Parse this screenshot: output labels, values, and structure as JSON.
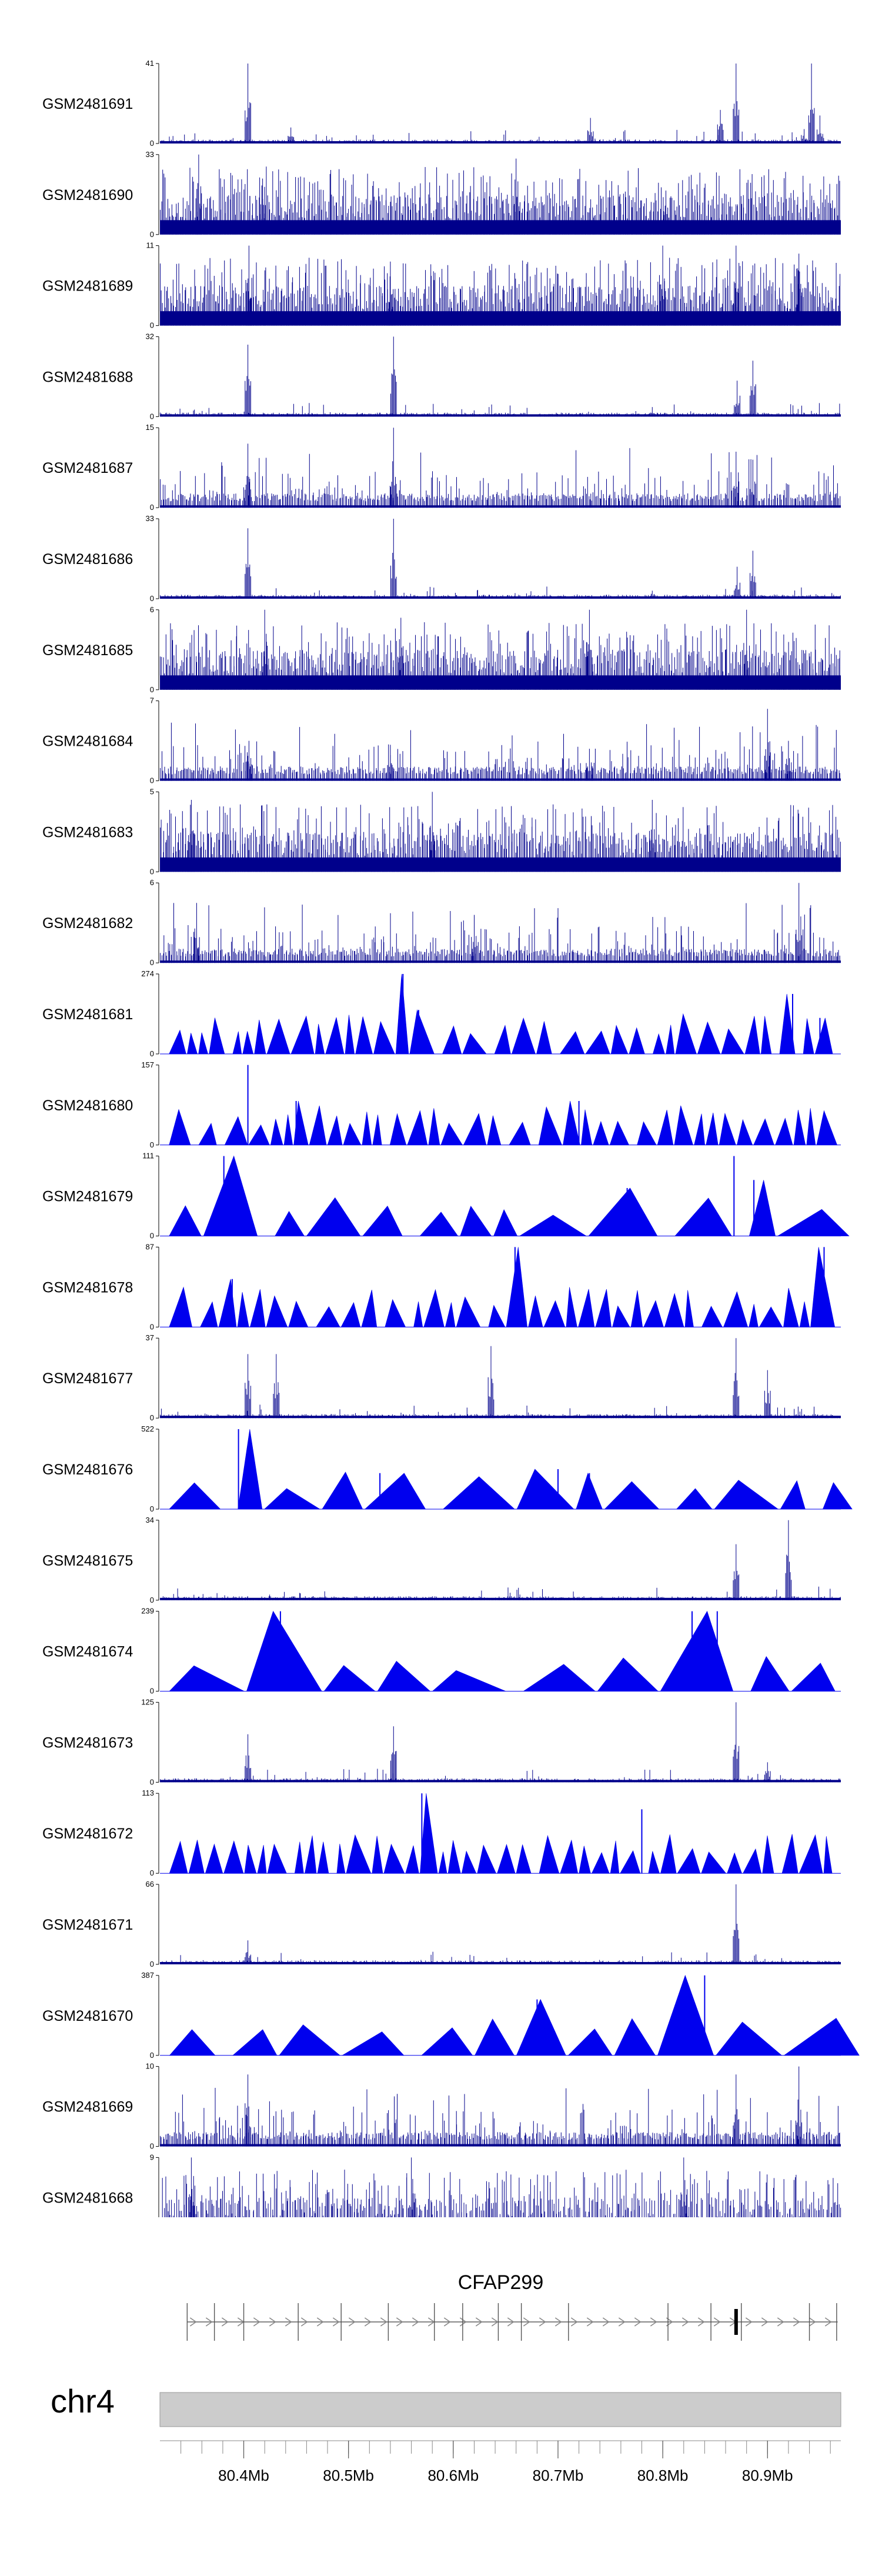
{
  "chart_data": {
    "type": "area",
    "title": "",
    "region": {
      "chromosome": "chr4",
      "start_mb": 80.32,
      "end_mb": 80.97
    },
    "tracks": [
      {
        "name": "GSM2481691",
        "ymax": "41",
        "ymin": "0",
        "style": "spiky",
        "seed": 11,
        "peaks": [
          [
            80.404,
            1.0
          ],
          [
            80.445,
            0.2
          ],
          [
            80.731,
            0.32
          ],
          [
            80.855,
            0.42
          ],
          [
            80.87,
            1.0
          ],
          [
            80.935,
            0.18
          ],
          [
            80.942,
            1.0
          ],
          [
            80.95,
            0.35
          ]
        ]
      },
      {
        "name": "GSM2481690",
        "ymax": "33",
        "ymin": "0",
        "style": "dense",
        "seed": 23,
        "peaks": [
          [
            80.357,
            1.0
          ],
          [
            80.418,
            0.7
          ],
          [
            80.66,
            0.95
          ],
          [
            80.803,
            0.55
          ]
        ]
      },
      {
        "name": "GSM2481689",
        "ymax": "11",
        "ymin": "0",
        "style": "dense",
        "seed": 31,
        "peaks": [
          [
            80.405,
            1.0
          ],
          [
            80.54,
            0.8
          ],
          [
            80.8,
            1.0
          ],
          [
            80.87,
            1.0
          ],
          [
            80.93,
            0.9
          ]
        ]
      },
      {
        "name": "GSM2481688",
        "ymax": "32",
        "ymin": "0",
        "style": "spiky",
        "seed": 41,
        "peaks": [
          [
            80.404,
            0.9
          ],
          [
            80.543,
            1.0
          ],
          [
            80.79,
            0.12
          ],
          [
            80.871,
            0.45
          ],
          [
            80.886,
            0.7
          ]
        ]
      },
      {
        "name": "GSM2481687",
        "ymax": "15",
        "ymin": "0",
        "style": "medium",
        "seed": 53,
        "peaks": [
          [
            80.404,
            0.8
          ],
          [
            80.543,
            1.0
          ],
          [
            80.87,
            0.7
          ],
          [
            80.886,
            0.6
          ]
        ]
      },
      {
        "name": "GSM2481686",
        "ymax": "33",
        "ymin": "0",
        "style": "spiky",
        "seed": 61,
        "peaks": [
          [
            80.404,
            0.88
          ],
          [
            80.543,
            1.0
          ],
          [
            80.79,
            0.1
          ],
          [
            80.871,
            0.4
          ],
          [
            80.886,
            0.6
          ]
        ]
      },
      {
        "name": "GSM2481685",
        "ymax": "6",
        "ymin": "0",
        "style": "dense",
        "seed": 71,
        "peaks": [
          [
            80.42,
            1.0
          ],
          [
            80.55,
            0.9
          ],
          [
            80.73,
            1.0
          ],
          [
            80.88,
            1.0
          ]
        ]
      },
      {
        "name": "GSM2481684",
        "ymax": "7",
        "ymin": "0",
        "style": "medium",
        "seed": 83,
        "peaks": [
          [
            80.405,
            0.5
          ],
          [
            80.54,
            0.45
          ],
          [
            80.73,
            0.4
          ],
          [
            80.9,
            0.9
          ],
          [
            80.92,
            0.5
          ]
        ]
      },
      {
        "name": "GSM2481683",
        "ymax": "5",
        "ymin": "0",
        "style": "dense",
        "seed": 97,
        "peaks": [
          [
            80.35,
            0.9
          ],
          [
            80.58,
            1.0
          ],
          [
            80.79,
            0.9
          ]
        ]
      },
      {
        "name": "GSM2481682",
        "ymax": "6",
        "ymin": "0",
        "style": "medium",
        "seed": 101,
        "peaks": [
          [
            80.355,
            0.75
          ],
          [
            80.62,
            0.6
          ],
          [
            80.93,
            1.0
          ]
        ]
      },
      {
        "name": "GSM2481681",
        "ymax": "274",
        "ymin": "0",
        "style": "triangles",
        "seed": 113,
        "peaks": [
          [
            80.552,
            1.0
          ],
          [
            80.567,
            0.55
          ],
          [
            80.924,
            0.75
          ],
          [
            80.95,
            0.45
          ]
        ]
      },
      {
        "name": "GSM2481680",
        "ymax": "157",
        "ymin": "0",
        "style": "triangles",
        "seed": 127,
        "peaks": [
          [
            80.404,
            1.0
          ],
          [
            80.45,
            0.55
          ],
          [
            80.72,
            0.55
          ]
        ]
      },
      {
        "name": "GSM2481679",
        "ymax": "111",
        "ymin": "0",
        "style": "bigtri",
        "seed": 131,
        "peaks": [
          [
            80.381,
            1.0
          ],
          [
            80.766,
            0.6
          ],
          [
            80.868,
            1.0
          ],
          [
            80.887,
            0.7
          ]
        ]
      },
      {
        "name": "GSM2481678",
        "ymax": "87",
        "ymin": "0",
        "style": "triangles",
        "seed": 139,
        "peaks": [
          [
            80.389,
            0.6
          ],
          [
            80.659,
            1.0
          ],
          [
            80.954,
            1.0
          ]
        ]
      },
      {
        "name": "GSM2481677",
        "ymax": "37",
        "ymin": "0",
        "style": "spiky",
        "seed": 149,
        "peaks": [
          [
            80.404,
            0.8
          ],
          [
            80.431,
            0.8
          ],
          [
            80.636,
            0.9
          ],
          [
            80.87,
            1.0
          ],
          [
            80.9,
            0.6
          ]
        ]
      },
      {
        "name": "GSM2481676",
        "ymax": "522",
        "ymin": "0",
        "style": "bigtri",
        "seed": 157,
        "peaks": [
          [
            80.395,
            1.0
          ],
          [
            80.53,
            0.45
          ],
          [
            80.7,
            0.5
          ],
          [
            80.73,
            0.45
          ]
        ]
      },
      {
        "name": "GSM2481675",
        "ymax": "34",
        "ymin": "0",
        "style": "spiky",
        "seed": 163,
        "peaks": [
          [
            80.87,
            0.7
          ],
          [
            80.92,
            1.0
          ]
        ]
      },
      {
        "name": "GSM2481674",
        "ymax": "239",
        "ymin": "0",
        "style": "bigtri",
        "seed": 173,
        "peaks": [
          [
            80.435,
            1.0
          ],
          [
            80.828,
            1.0
          ],
          [
            80.852,
            1.0
          ]
        ]
      },
      {
        "name": "GSM2481673",
        "ymax": "125",
        "ymin": "0",
        "style": "spiky",
        "seed": 181,
        "peaks": [
          [
            80.404,
            0.6
          ],
          [
            80.543,
            0.7
          ],
          [
            80.87,
            1.0
          ],
          [
            80.9,
            0.25
          ]
        ]
      },
      {
        "name": "GSM2481672",
        "ymax": "113",
        "ymin": "0",
        "style": "triangles",
        "seed": 191,
        "peaks": [
          [
            80.57,
            1.0
          ],
          [
            80.78,
            0.8
          ]
        ]
      },
      {
        "name": "GSM2481671",
        "ymax": "66",
        "ymin": "0",
        "style": "spiky",
        "seed": 197,
        "peaks": [
          [
            80.404,
            0.3
          ],
          [
            80.87,
            1.0
          ]
        ]
      },
      {
        "name": "GSM2481670",
        "ymax": "387",
        "ymin": "0",
        "style": "bigtri",
        "seed": 211,
        "peaks": [
          [
            80.68,
            0.7
          ],
          [
            80.82,
            0.85
          ],
          [
            80.84,
            1.0
          ]
        ]
      },
      {
        "name": "GSM2481669",
        "ymax": "10",
        "ymin": "0",
        "style": "medium",
        "seed": 223,
        "peaks": [
          [
            80.404,
            0.9
          ],
          [
            80.87,
            0.9
          ],
          [
            80.93,
            1.0
          ]
        ]
      },
      {
        "name": "GSM2481668",
        "ymax": "9",
        "ymin": "0",
        "style": "dense",
        "seed": 229,
        "peaks": [
          [
            80.35,
            1.0
          ],
          [
            80.56,
            1.0
          ],
          [
            80.82,
            1.0
          ]
        ]
      }
    ],
    "gene": {
      "name": "CFAP299",
      "strand": "+",
      "start_mb": 80.346,
      "end_mb": 80.967,
      "exons_mb": [
        80.346,
        80.372,
        80.4,
        80.452,
        80.493,
        80.538,
        80.582,
        80.609,
        80.643,
        80.665,
        80.71,
        80.805,
        80.846,
        80.875,
        80.94,
        80.966
      ],
      "highlight_exon_mb": 80.87
    },
    "axis": {
      "chromosome_label": "chr4",
      "ticks": [
        {
          "value": 80.4,
          "label": "80.4Mb"
        },
        {
          "value": 80.5,
          "label": "80.5Mb"
        },
        {
          "value": 80.6,
          "label": "80.6Mb"
        },
        {
          "value": 80.7,
          "label": "80.7Mb"
        },
        {
          "value": 80.8,
          "label": "80.8Mb"
        },
        {
          "value": 80.9,
          "label": "80.9Mb"
        }
      ],
      "minor_tick_step_mb": 0.02
    },
    "colors": {
      "signal": "#00008b",
      "triangle": "#0000ee",
      "ideogram": "#cccccc",
      "gene": "#000000"
    }
  }
}
